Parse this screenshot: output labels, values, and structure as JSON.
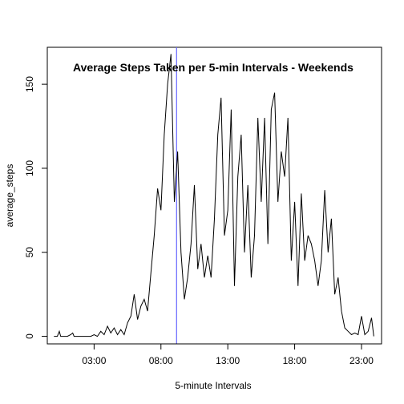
{
  "chart_data": {
    "type": "line",
    "title": "Average Steps Taken per 5-min Intervals - Weekends",
    "xlabel": "5-minute Intervals",
    "ylabel": "average_steps",
    "x_unit": "hours",
    "xlim": [
      -0.5,
      24.5
    ],
    "ylim": [
      -4.5,
      172
    ],
    "x_ticks": [
      3,
      8,
      13,
      18,
      23
    ],
    "x_tick_labels": [
      "03:00",
      "08:00",
      "13:00",
      "18:00",
      "23:00"
    ],
    "y_ticks": [
      0,
      50,
      100,
      150
    ],
    "y_tick_labels": [
      "0",
      "50",
      "100",
      "150"
    ],
    "grid": false,
    "legend": "none",
    "line_color": "#000000",
    "vline": {
      "x": 9.17,
      "color": "#6666ff"
    },
    "series": [
      {
        "x": [
          0,
          0.25,
          0.4,
          0.5,
          0.75,
          1,
          1.25,
          1.4,
          1.5,
          1.75,
          2,
          2.25,
          2.5,
          2.75,
          3,
          3.25,
          3.5,
          3.75,
          4,
          4.25,
          4.5,
          4.75,
          5,
          5.25,
          5.5,
          5.75,
          6,
          6.25,
          6.5,
          6.75,
          7,
          7.25,
          7.5,
          7.75,
          8,
          8.25,
          8.5,
          8.75,
          9,
          9.25,
          9.5,
          9.75,
          10,
          10.25,
          10.5,
          10.75,
          11,
          11.25,
          11.5,
          11.75,
          12,
          12.25,
          12.5,
          12.75,
          13,
          13.25,
          13.5,
          13.75,
          14,
          14.25,
          14.5,
          14.75,
          15,
          15.25,
          15.5,
          15.75,
          16,
          16.25,
          16.5,
          16.75,
          17,
          17.25,
          17.5,
          17.75,
          18,
          18.25,
          18.5,
          18.75,
          19,
          19.25,
          19.5,
          19.75,
          20,
          20.25,
          20.5,
          20.75,
          21,
          21.25,
          21.5,
          21.75,
          22,
          22.25,
          22.5,
          22.75,
          23,
          23.25,
          23.5,
          23.75,
          23.92
        ],
        "y": [
          0,
          0,
          3,
          0,
          0,
          0,
          1,
          2,
          0,
          0,
          0,
          0,
          0,
          0,
          1,
          0,
          3,
          1,
          6,
          2,
          5,
          1,
          4,
          1,
          8,
          12,
          25,
          10,
          18,
          22,
          15,
          38,
          60,
          88,
          75,
          120,
          150,
          168,
          80,
          110,
          50,
          22,
          35,
          55,
          90,
          40,
          55,
          35,
          48,
          35,
          70,
          120,
          142,
          60,
          75,
          135,
          30,
          95,
          120,
          50,
          90,
          35,
          60,
          130,
          80,
          130,
          55,
          135,
          145,
          80,
          110,
          95,
          130,
          45,
          80,
          30,
          85,
          45,
          60,
          55,
          45,
          30,
          45,
          87,
          50,
          70,
          25,
          35,
          15,
          5,
          3,
          1,
          2,
          1,
          12,
          1,
          3,
          11,
          0
        ]
      }
    ]
  }
}
